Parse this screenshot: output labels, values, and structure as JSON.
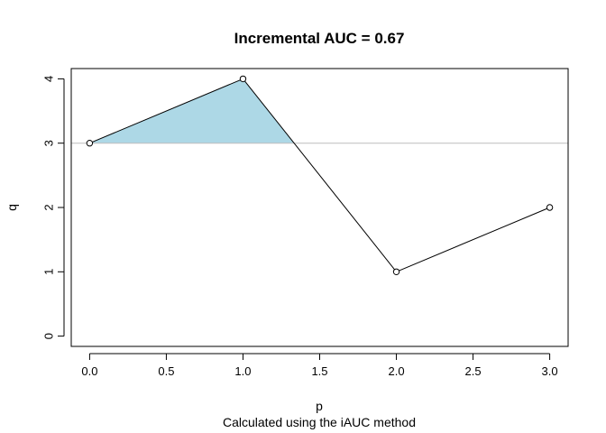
{
  "chart_data": {
    "type": "line",
    "title": "Incremental AUC = 0.67",
    "subtitle": "Calculated using the iAUC method",
    "xlabel": "p",
    "ylabel": "q",
    "x": [
      0,
      1,
      2,
      3
    ],
    "y": [
      3,
      4,
      1,
      2
    ],
    "xlim": [
      -0.12,
      3.12
    ],
    "ylim": [
      -0.16,
      4.16
    ],
    "xticks": [
      0,
      0.5,
      1,
      1.5,
      2,
      2.5,
      3
    ],
    "xtick_labels": [
      "0.0",
      "0.5",
      "1.0",
      "1.5",
      "2.0",
      "2.5",
      "3.0"
    ],
    "yticks": [
      0,
      1,
      2,
      3,
      4
    ],
    "ytick_labels": [
      "0",
      "1",
      "2",
      "3",
      "4"
    ],
    "baseline": 3,
    "auc": 0.67,
    "fill_color": "#add8e6",
    "baseline_color": "#bebebe",
    "line_color": "#000000",
    "grid": false,
    "markers": "open-circle"
  }
}
